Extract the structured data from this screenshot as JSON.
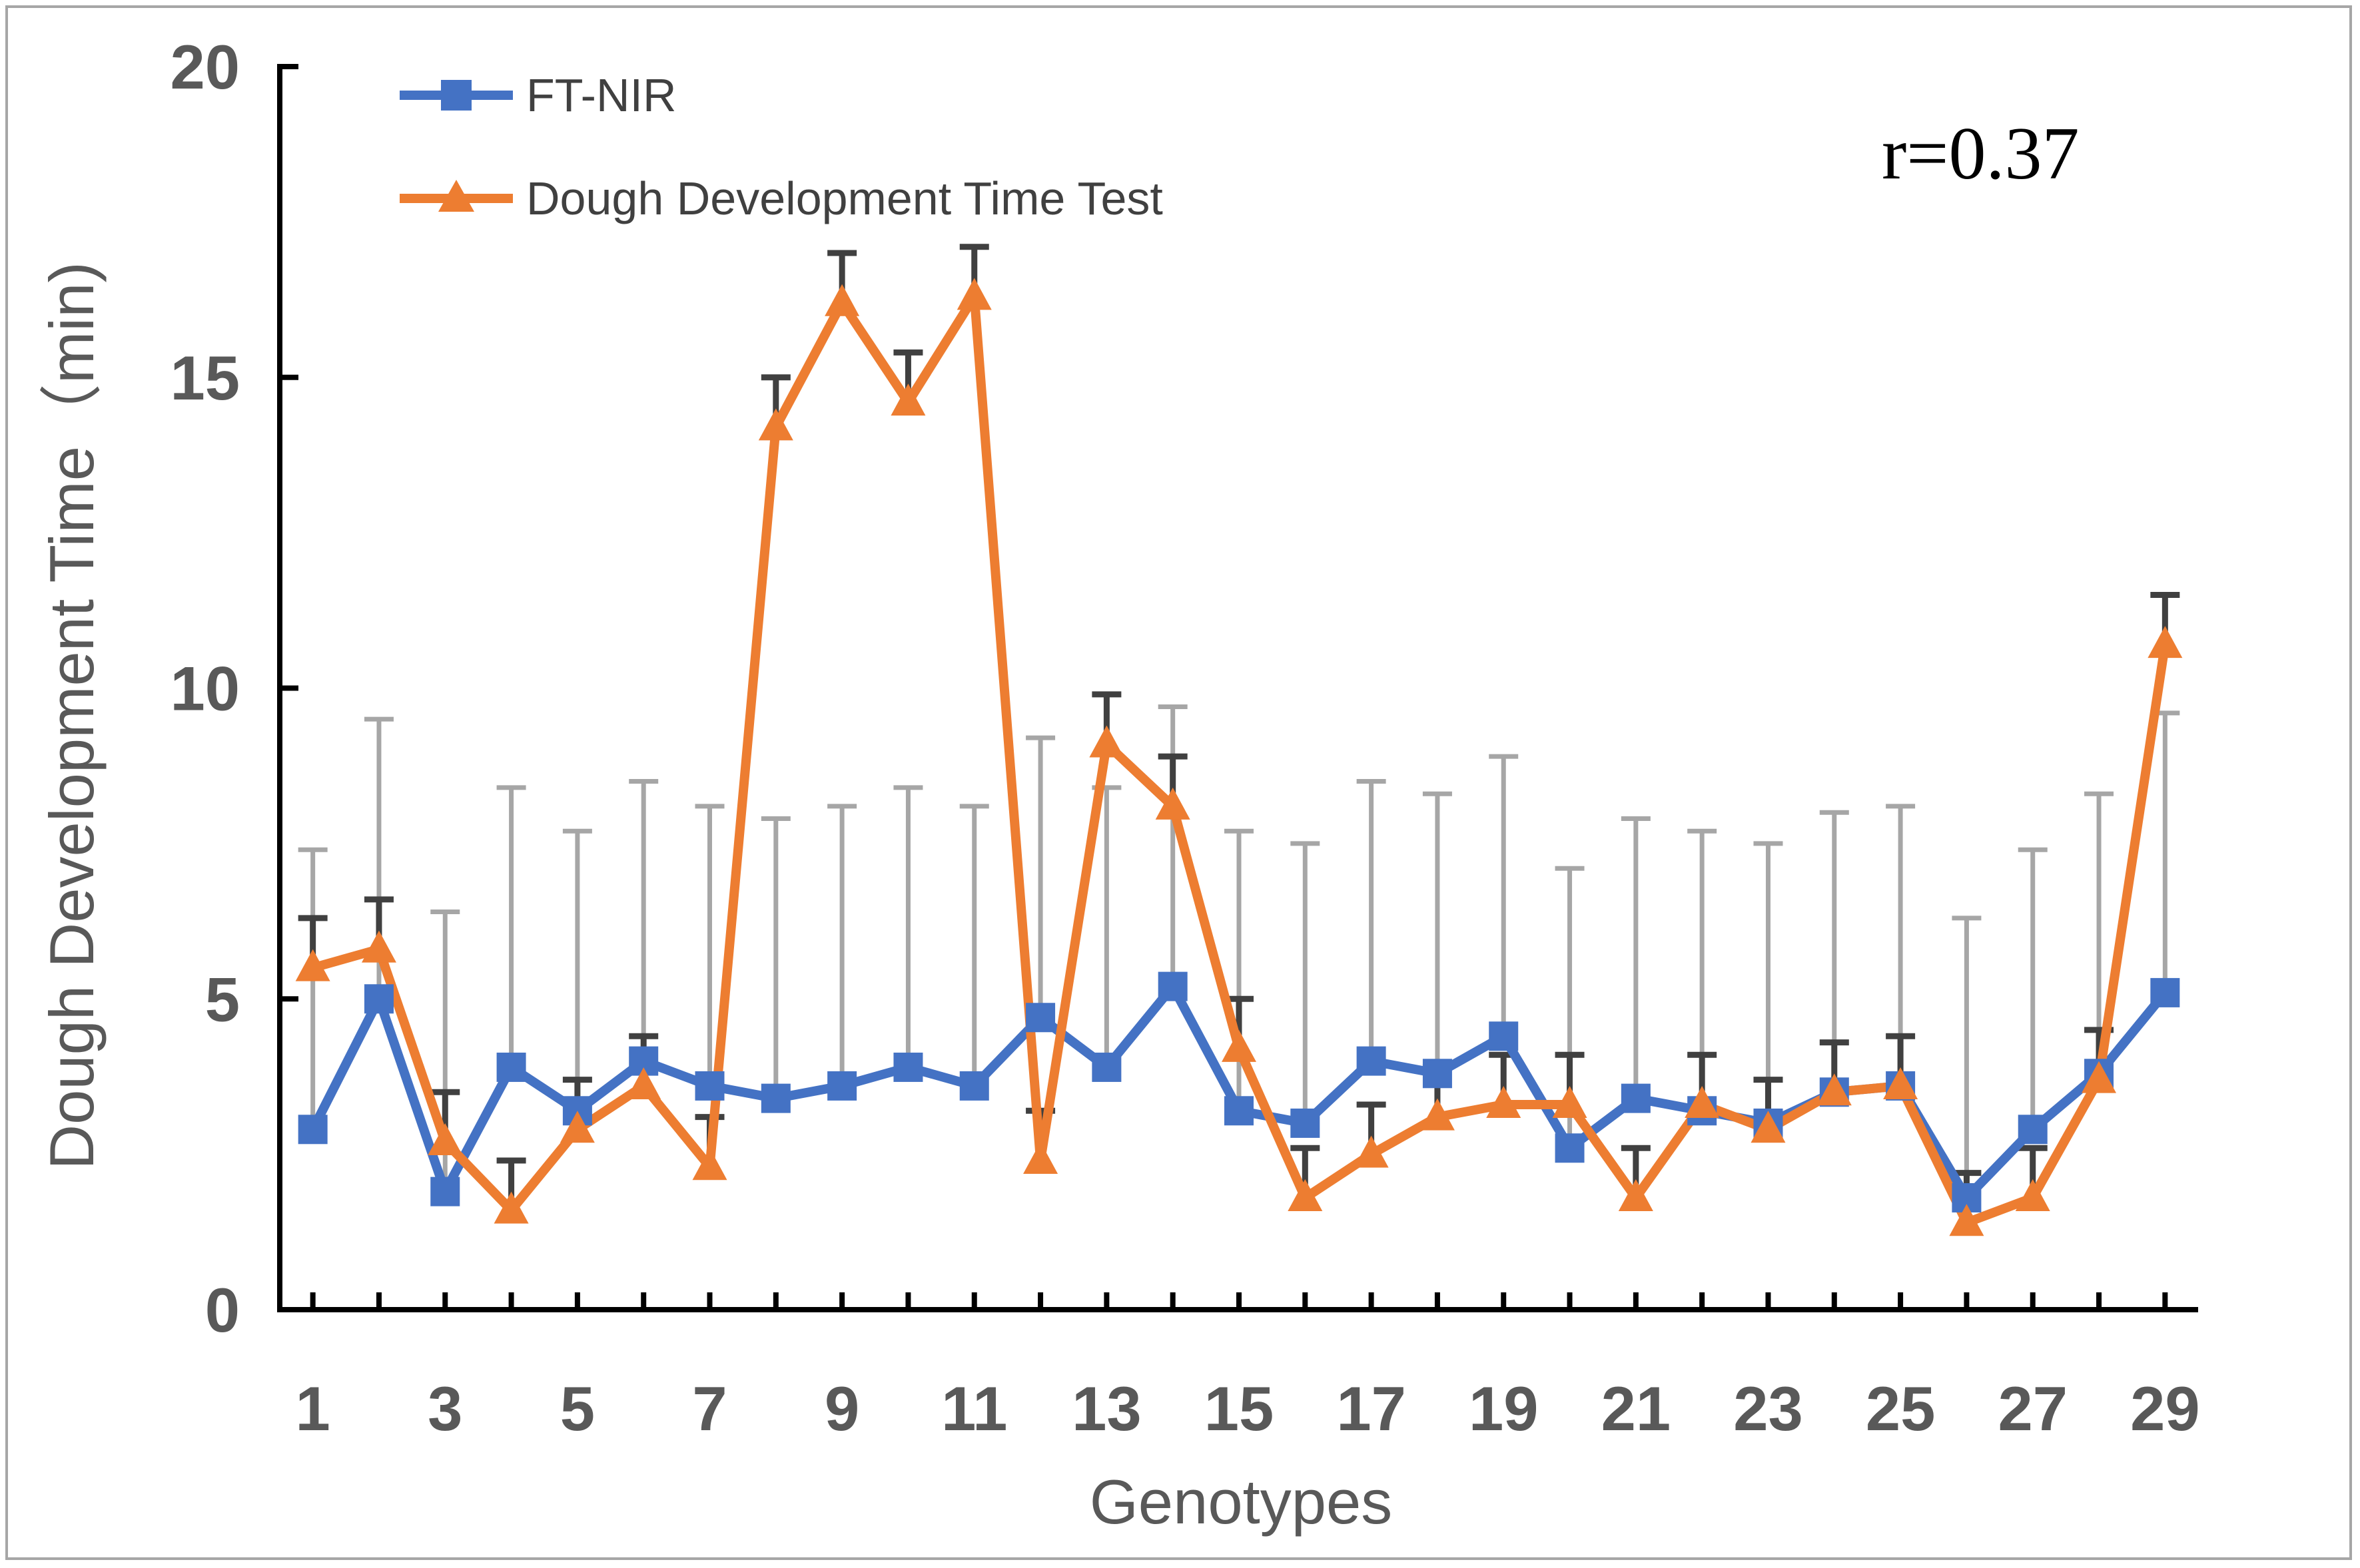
{
  "chart_data": {
    "type": "line",
    "title": "",
    "xlabel": "Genotypes",
    "ylabel": "Dough Development Time（min)",
    "xlim": [
      0.5,
      29.5
    ],
    "ylim": [
      0,
      20
    ],
    "yticks": [
      0,
      5,
      10,
      15,
      20
    ],
    "xticks": [
      1,
      3,
      5,
      7,
      9,
      11,
      13,
      15,
      17,
      19,
      21,
      23,
      25,
      27,
      29
    ],
    "x": [
      1,
      2,
      3,
      4,
      5,
      6,
      7,
      8,
      9,
      10,
      11,
      12,
      13,
      14,
      15,
      16,
      17,
      18,
      19,
      20,
      21,
      22,
      23,
      24,
      25,
      26,
      27,
      28,
      29
    ],
    "grid": false,
    "legend_position": "top-left",
    "annotation": "r=0.37",
    "series": [
      {
        "name": "FT-NIR",
        "color": "#4472c4",
        "marker": "square",
        "values": [
          2.9,
          5.0,
          1.9,
          3.9,
          3.2,
          4.0,
          3.6,
          3.4,
          3.6,
          3.9,
          3.6,
          4.7,
          3.9,
          5.2,
          3.2,
          3.0,
          4.0,
          3.8,
          4.4,
          2.6,
          3.4,
          3.2,
          3.0,
          3.5,
          3.6,
          1.8,
          2.9,
          3.8,
          5.1
        ],
        "error_upper": [
          4.5,
          4.5,
          4.5,
          4.5,
          4.5,
          4.5,
          4.5,
          4.5,
          4.5,
          4.5,
          4.5,
          4.5,
          4.5,
          4.5,
          4.5,
          4.5,
          4.5,
          4.5,
          4.5,
          4.5,
          4.5,
          4.5,
          4.5,
          4.5,
          4.5,
          4.5,
          4.5,
          4.5,
          4.5
        ],
        "error_color": "#a6a6a6"
      },
      {
        "name": "Dough Development Time Test",
        "color": "#ed7d31",
        "marker": "triangle",
        "values": [
          5.5,
          5.8,
          2.7,
          1.6,
          2.9,
          3.6,
          2.3,
          14.2,
          16.2,
          14.6,
          16.3,
          2.4,
          9.1,
          8.1,
          4.2,
          1.8,
          2.5,
          3.1,
          3.3,
          3.3,
          1.8,
          3.3,
          2.9,
          3.5,
          3.6,
          1.4,
          1.8,
          3.7,
          10.7
        ],
        "error_upper": [
          0.8,
          0.8,
          0.8,
          0.8,
          0.8,
          0.8,
          0.8,
          0.8,
          0.8,
          0.8,
          0.8,
          0.8,
          0.8,
          0.8,
          0.8,
          0.8,
          0.8,
          0.8,
          0.8,
          0.8,
          0.8,
          0.8,
          0.8,
          0.8,
          0.8,
          0.8,
          0.8,
          0.8,
          0.8
        ],
        "error_color": "#404040"
      }
    ]
  }
}
